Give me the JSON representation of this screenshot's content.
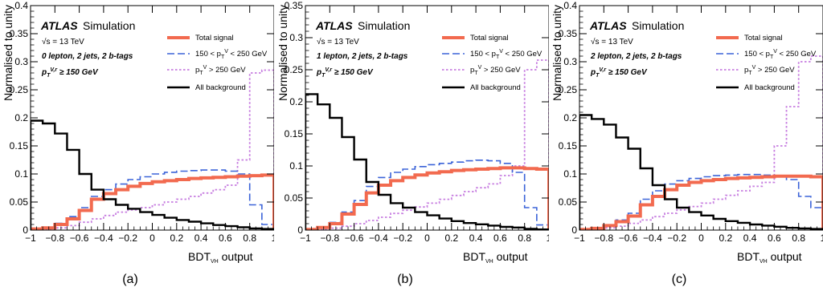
{
  "xaxis": {
    "title_main": "BDT",
    "title_sub": "VH",
    "title_tail": " output",
    "range": [
      -1,
      1
    ],
    "ticks": [
      -1,
      -0.8,
      -0.6,
      -0.4,
      -0.2,
      0,
      0.2,
      0.4,
      0.6,
      0.8,
      1
    ],
    "tick_labels": [
      "−1",
      "−0.8",
      "−0.6",
      "−0.4",
      "−0.2",
      "0",
      "0.2",
      "0.4",
      "0.6",
      "0.8",
      "1"
    ]
  },
  "yaxis_title": "Normalised to unity",
  "atlas_label": "ATLAS",
  "simulation_label": "Simulation",
  "energy_label": "√s = 13 TeV",
  "ptv_cut_label": "p_T^{V,r} ≥ 150 GeV",
  "legend": {
    "total_signal": "Total signal",
    "mid": "150 < p_T^V < 250 GeV",
    "high": "p_T^V > 250 GeV",
    "background": "All background"
  },
  "colors": {
    "total_signal": "#f26a4f",
    "mid": "#3b63d8",
    "high": "#c77ee0",
    "background": "#000000"
  },
  "chart_data": [
    {
      "type": "histogram",
      "caption": "(a)",
      "region_label": "0 lepton, 2 jets, 2 b-tags",
      "ylim": [
        0,
        0.4
      ],
      "y_ticks": [
        0,
        0.05,
        0.1,
        0.15,
        0.2,
        0.25,
        0.3,
        0.35,
        0.4
      ],
      "y_tick_labels": [
        "0",
        "0.05",
        "0.1",
        "0.15",
        "0.2",
        "0.25",
        "0.3",
        "0.35",
        "0.4"
      ],
      "bin_edges": [
        -1,
        -0.9,
        -0.8,
        -0.7,
        -0.6,
        -0.5,
        -0.4,
        -0.3,
        -0.2,
        -0.1,
        0,
        0.1,
        0.2,
        0.3,
        0.4,
        0.5,
        0.6,
        0.7,
        0.8,
        0.9,
        1
      ],
      "series": [
        {
          "key": "background",
          "values": [
            0.195,
            0.19,
            0.172,
            0.143,
            0.1,
            0.072,
            0.055,
            0.045,
            0.038,
            0.032,
            0.027,
            0.022,
            0.018,
            0.015,
            0.012,
            0.009,
            0.007,
            0.005,
            0.003,
            0.002
          ]
        },
        {
          "key": "total_signal",
          "values": [
            0.002,
            0.004,
            0.01,
            0.02,
            0.035,
            0.055,
            0.065,
            0.072,
            0.078,
            0.083,
            0.086,
            0.088,
            0.09,
            0.092,
            0.093,
            0.094,
            0.095,
            0.096,
            0.097,
            0.098
          ]
        },
        {
          "key": "mid",
          "values": [
            0.002,
            0.005,
            0.012,
            0.024,
            0.04,
            0.06,
            0.072,
            0.082,
            0.09,
            0.095,
            0.1,
            0.103,
            0.105,
            0.106,
            0.107,
            0.107,
            0.105,
            0.1,
            0.045,
            0.01
          ]
        },
        {
          "key": "high",
          "values": [
            0.001,
            0.002,
            0.004,
            0.008,
            0.014,
            0.02,
            0.026,
            0.032,
            0.036,
            0.04,
            0.045,
            0.05,
            0.055,
            0.06,
            0.066,
            0.072,
            0.08,
            0.125,
            0.28,
            0.285
          ]
        }
      ]
    },
    {
      "type": "histogram",
      "caption": "(b)",
      "region_label": "1 lepton, 2 jets, 2 b-tags",
      "ylim": [
        0,
        0.35
      ],
      "y_ticks": [
        0,
        0.05,
        0.1,
        0.15,
        0.2,
        0.25,
        0.3,
        0.35
      ],
      "y_tick_labels": [
        "0",
        "0.05",
        "0.1",
        "0.15",
        "0.2",
        "0.25",
        "0.3",
        "0.35"
      ],
      "bin_edges": [
        -1,
        -0.9,
        -0.8,
        -0.7,
        -0.6,
        -0.5,
        -0.4,
        -0.3,
        -0.2,
        -0.1,
        0,
        0.1,
        0.2,
        0.3,
        0.4,
        0.5,
        0.6,
        0.7,
        0.8,
        0.9,
        1
      ],
      "series": [
        {
          "key": "background",
          "values": [
            0.212,
            0.196,
            0.175,
            0.145,
            0.11,
            0.075,
            0.055,
            0.042,
            0.035,
            0.028,
            0.023,
            0.018,
            0.014,
            0.011,
            0.009,
            0.007,
            0.005,
            0.004,
            0.002,
            0.001
          ]
        },
        {
          "key": "total_signal",
          "values": [
            0.001,
            0.004,
            0.01,
            0.025,
            0.04,
            0.058,
            0.07,
            0.077,
            0.082,
            0.086,
            0.089,
            0.091,
            0.093,
            0.094,
            0.095,
            0.096,
            0.097,
            0.097,
            0.096,
            0.095
          ]
        },
        {
          "key": "mid",
          "values": [
            0.001,
            0.005,
            0.012,
            0.028,
            0.046,
            0.068,
            0.082,
            0.09,
            0.095,
            0.099,
            0.102,
            0.104,
            0.106,
            0.108,
            0.109,
            0.108,
            0.104,
            0.09,
            0.035,
            0.008
          ]
        },
        {
          "key": "high",
          "values": [
            0.001,
            0.001,
            0.003,
            0.006,
            0.01,
            0.015,
            0.02,
            0.026,
            0.031,
            0.036,
            0.042,
            0.048,
            0.054,
            0.06,
            0.066,
            0.072,
            0.085,
            0.1,
            0.25,
            0.265
          ]
        }
      ]
    },
    {
      "type": "histogram",
      "caption": "(c)",
      "region_label": "2 lepton, 2 jets, 2 b-tags",
      "ylim": [
        0,
        0.4
      ],
      "y_ticks": [
        0,
        0.05,
        0.1,
        0.15,
        0.2,
        0.25,
        0.3,
        0.35,
        0.4
      ],
      "y_tick_labels": [
        "0",
        "0.05",
        "0.1",
        "0.15",
        "0.2",
        "0.25",
        "0.3",
        "0.35",
        "0.4"
      ],
      "bin_edges": [
        -1,
        -0.9,
        -0.8,
        -0.7,
        -0.6,
        -0.5,
        -0.4,
        -0.3,
        -0.2,
        -0.1,
        0,
        0.1,
        0.2,
        0.3,
        0.4,
        0.5,
        0.6,
        0.7,
        0.8,
        0.9,
        1
      ],
      "series": [
        {
          "key": "background",
          "values": [
            0.205,
            0.198,
            0.188,
            0.165,
            0.145,
            0.11,
            0.08,
            0.055,
            0.04,
            0.032,
            0.026,
            0.02,
            0.016,
            0.013,
            0.01,
            0.008,
            0.006,
            0.004,
            0.003,
            0.002
          ]
        },
        {
          "key": "total_signal",
          "values": [
            0.001,
            0.003,
            0.008,
            0.015,
            0.025,
            0.045,
            0.06,
            0.072,
            0.08,
            0.085,
            0.088,
            0.09,
            0.092,
            0.093,
            0.094,
            0.095,
            0.096,
            0.096,
            0.096,
            0.095
          ]
        },
        {
          "key": "mid",
          "values": [
            0.001,
            0.003,
            0.008,
            0.018,
            0.03,
            0.055,
            0.07,
            0.082,
            0.088,
            0.092,
            0.095,
            0.097,
            0.098,
            0.099,
            0.099,
            0.098,
            0.095,
            0.09,
            0.06,
            0.04
          ]
        },
        {
          "key": "high",
          "values": [
            0.001,
            0.002,
            0.004,
            0.007,
            0.012,
            0.018,
            0.024,
            0.03,
            0.036,
            0.042,
            0.048,
            0.055,
            0.062,
            0.07,
            0.078,
            0.085,
            0.15,
            0.22,
            0.3,
            0.31
          ]
        }
      ]
    }
  ]
}
